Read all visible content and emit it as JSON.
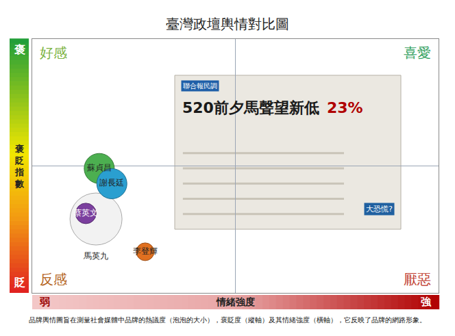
{
  "chart_data": {
    "type": "bubble",
    "title": "臺灣政壇輿情對比圖",
    "x_label": "情緒強度",
    "y_label": "褒貶指數",
    "xlim": [
      0,
      100
    ],
    "ylim": [
      0,
      100
    ],
    "xticks": [
      {
        "value": 0,
        "label": "弱"
      },
      {
        "value": 100,
        "label": "強"
      }
    ],
    "yticks": [
      {
        "value": 0,
        "label": "貶"
      },
      {
        "value": 100,
        "label": "褒"
      }
    ],
    "data_labels": true,
    "quadrants": {
      "top_left": "好感",
      "top_right": "喜愛",
      "bottom_left": "反感",
      "bottom_right": "厭惡"
    },
    "points": [
      {
        "label": "馬英九",
        "x": 15.7,
        "y": 29.1,
        "size": 76,
        "color": "#f2f2f2"
      },
      {
        "label": "蘇貞昌",
        "x": 16.5,
        "y": 49,
        "size": 44,
        "color": "#4caf50"
      },
      {
        "label": "謝長廷",
        "x": 19.6,
        "y": 43,
        "size": 44,
        "color": "#2a9fd0"
      },
      {
        "label": "蔡英文",
        "x": 13.2,
        "y": 31.3,
        "size": 30,
        "color": "#7b3f9e"
      },
      {
        "label": "李登輝",
        "x": 27.8,
        "y": 16.2,
        "size": 26,
        "color": "#e07020"
      }
    ],
    "clipping": {
      "source": "聯合報民調",
      "headline": "520前夕馬聲望新低",
      "figure": "23%",
      "tag": "大恐慌?"
    },
    "note": "品牌輿情圖旨在測量社會媒體中品牌的熱議度（泡泡的大小），褒貶度（縱軸）及其情緒強度（橫軸），它反映了品牌的網路形象。"
  }
}
